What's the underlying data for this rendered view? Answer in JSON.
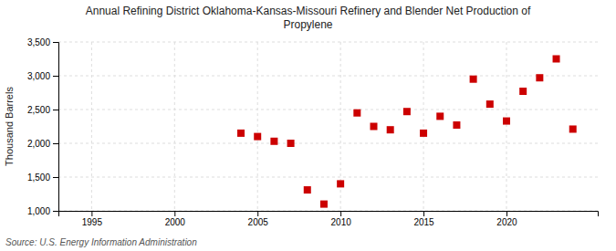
{
  "chart_data": {
    "type": "scatter",
    "title": "Annual Refining District Oklahoma-Kansas-Missouri Refinery and Blender Net Production of\nPropylene",
    "ylabel": "Thousand Barrels",
    "annotations": [
      "Source: U.S. Energy Information Administration"
    ],
    "x": [
      2004,
      2005,
      2006,
      2007,
      2008,
      2009,
      2010,
      2011,
      2012,
      2013,
      2014,
      2015,
      2016,
      2017,
      2018,
      2019,
      2020,
      2021,
      2022,
      2023,
      2024
    ],
    "values": [
      2150,
      2100,
      2030,
      2000,
      1310,
      1100,
      1400,
      2450,
      2250,
      2200,
      2470,
      2150,
      2400,
      2270,
      2950,
      2580,
      2330,
      2770,
      2970,
      3250,
      2210
    ],
    "color": "#cc0000",
    "marker": "square",
    "xlim": [
      1993,
      2025.5
    ],
    "ylim": [
      1000,
      3500
    ],
    "xticks": [
      1995,
      2000,
      2005,
      2010,
      2015,
      2020
    ],
    "yticks": [
      {
        "value": 1000,
        "label": "1,000"
      },
      {
        "value": 1500,
        "label": "1,500"
      },
      {
        "value": 2000,
        "label": "2,000"
      },
      {
        "value": 2500,
        "label": "2,500"
      },
      {
        "value": 3000,
        "label": "3,000"
      },
      {
        "value": 3500,
        "label": "3,500"
      }
    ],
    "grid": true
  }
}
